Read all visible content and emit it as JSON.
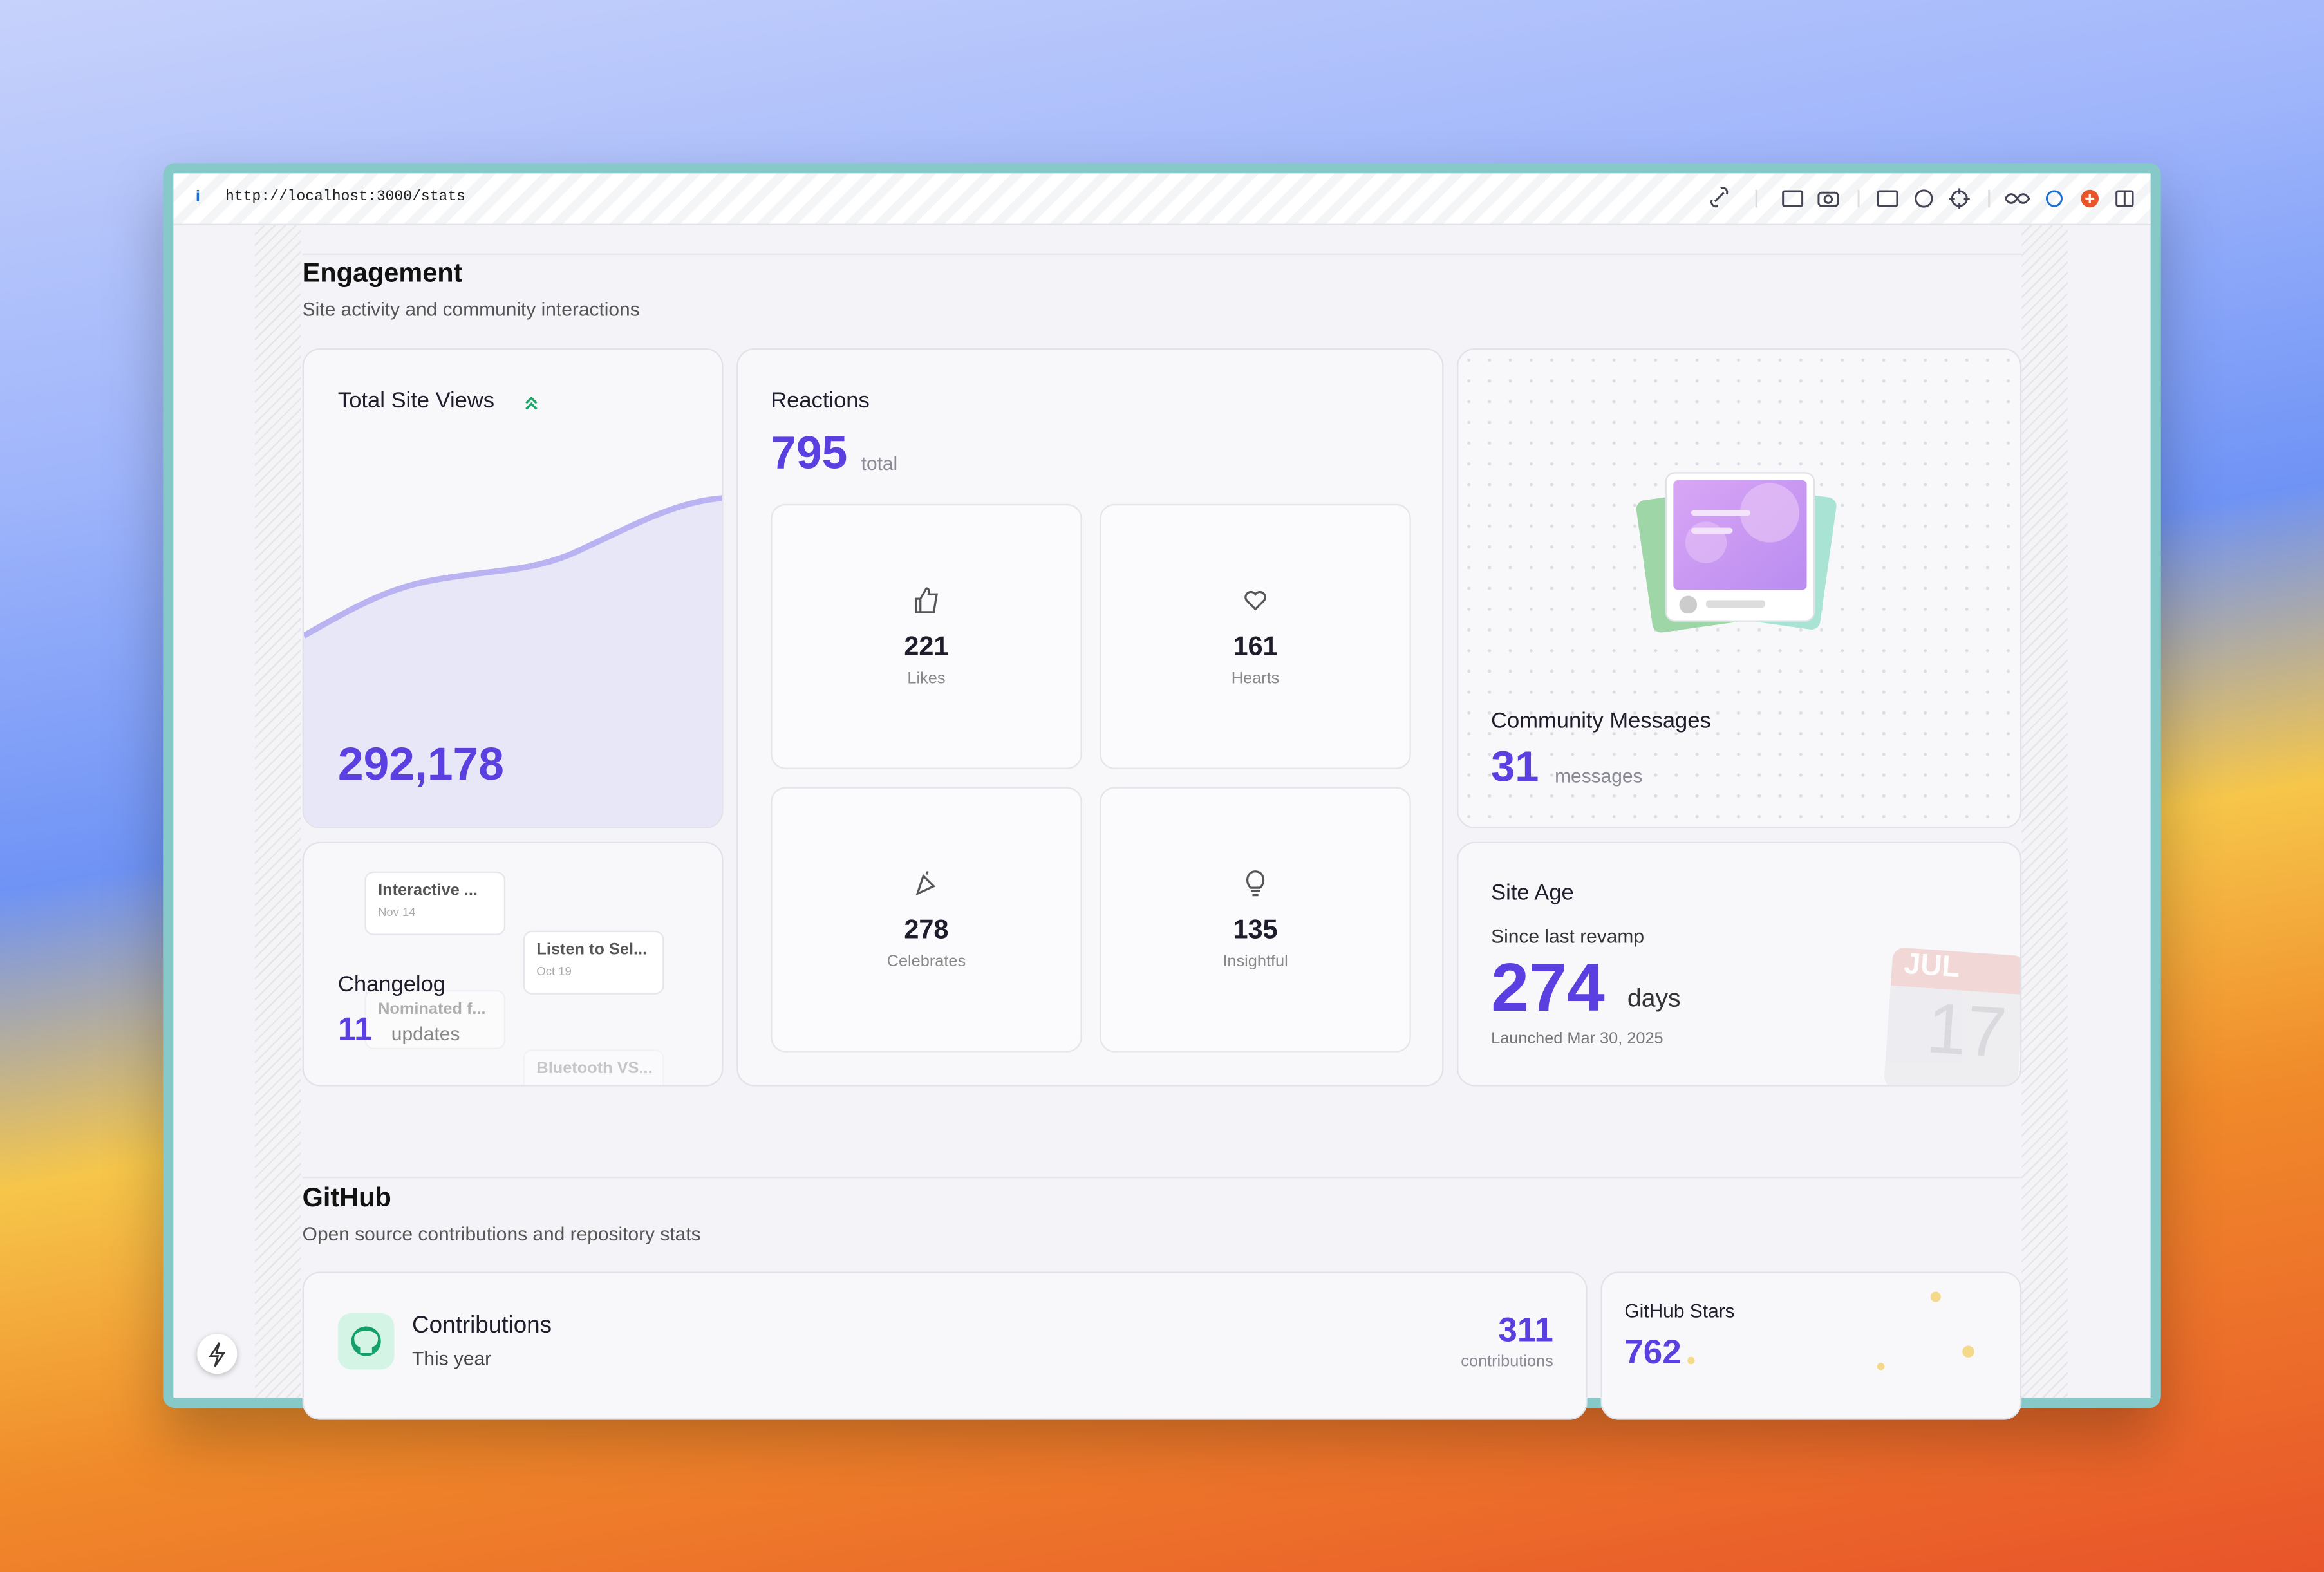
{
  "browser": {
    "url": "http://localhost:3000/stats"
  },
  "engagement": {
    "title": "Engagement",
    "subtitle": "Site activity and community interactions",
    "site_views": {
      "title": "Total Site Views",
      "value": "292,178"
    },
    "reactions": {
      "title": "Reactions",
      "total": "795",
      "total_label": "total",
      "items": [
        {
          "value": "221",
          "label": "Likes"
        },
        {
          "value": "161",
          "label": "Hearts"
        },
        {
          "value": "278",
          "label": "Celebrates"
        },
        {
          "value": "135",
          "label": "Insightful"
        }
      ]
    },
    "community": {
      "title": "Community Messages",
      "value": "31",
      "unit": "messages"
    },
    "changelog": {
      "title": "Changelog",
      "value": "11",
      "unit": "updates",
      "entries": [
        {
          "title": "Interactive ...",
          "date": "Nov 14"
        },
        {
          "title": "Listen to Sel...",
          "date": "Oct 19"
        },
        {
          "title": "Nominated f..."
        },
        {
          "title": "Bluetooth VS..."
        }
      ]
    },
    "site_age": {
      "title": "Site Age",
      "subtitle": "Since last revamp",
      "value": "274",
      "unit": "days",
      "launched": "Launched Mar 30, 2025",
      "calendar_month": "JUL",
      "calendar_day": "17"
    }
  },
  "github": {
    "title": "GitHub",
    "subtitle": "Open source contributions and repository stats",
    "contributions": {
      "title": "Contributions",
      "subtitle": "This year",
      "value": "311",
      "unit": "contributions"
    },
    "stars": {
      "title": "GitHub Stars",
      "value": "762"
    }
  }
}
